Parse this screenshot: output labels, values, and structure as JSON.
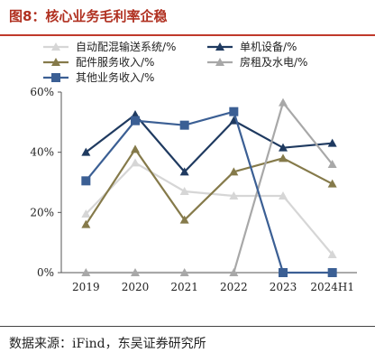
{
  "header": {
    "title": "图8：核心业务毛利率企稳"
  },
  "footer": {
    "source": "数据来源：iFind，东吴证券研究所"
  },
  "chart_data": {
    "type": "line",
    "title": "",
    "xlabel": "",
    "ylabel": "",
    "categories": [
      "2019",
      "2020",
      "2021",
      "2022",
      "2023",
      "2024H1"
    ],
    "y_ticks": [
      "0%",
      "20%",
      "40%",
      "60%"
    ],
    "ylim": [
      0,
      60
    ],
    "grid": false,
    "legend_position": "top",
    "series": [
      {
        "name": "自动配混输送系统/%",
        "values": [
          19.5,
          36.5,
          27,
          25.5,
          25.5,
          6
        ],
        "color": "#d6d6d6",
        "marker": "triangle-up"
      },
      {
        "name": "单机设备/%",
        "values": [
          40,
          52.5,
          33.5,
          50.5,
          41.5,
          43
        ],
        "color": "#1f3a60",
        "marker": "triangle-up"
      },
      {
        "name": "配件服务收入/%",
        "values": [
          16,
          41,
          17.5,
          33.5,
          38,
          29.5
        ],
        "color": "#857a4a",
        "marker": "triangle-up"
      },
      {
        "name": "房租及水电/%",
        "values": [
          0,
          0,
          0,
          0,
          56.5,
          36
        ],
        "color": "#a8a8a8",
        "marker": "triangle-up"
      },
      {
        "name": "其他业务收入/%",
        "values": [
          30.5,
          50.5,
          49,
          53.5,
          0,
          0
        ],
        "color": "#3b5f94",
        "marker": "square"
      }
    ]
  }
}
